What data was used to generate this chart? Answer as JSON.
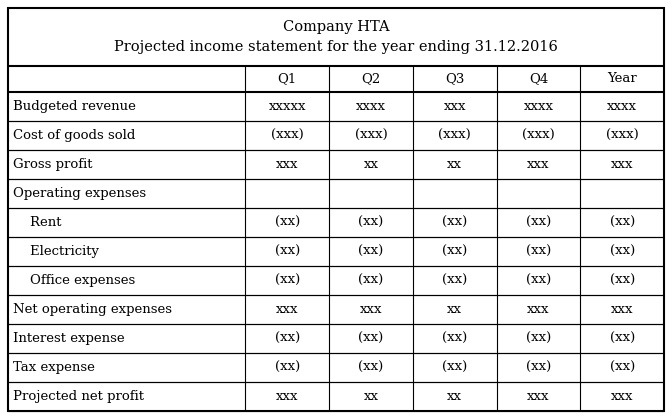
{
  "title_line1": "Company HTA",
  "title_line2": "Projected income statement for the year ending 31.12.2016",
  "col_headers": [
    "",
    "Q1",
    "Q2",
    "Q3",
    "Q4",
    "Year"
  ],
  "rows": [
    {
      "label": "Budgeted revenue",
      "indent": false,
      "values": [
        "xxxxx",
        "xxxx",
        "xxx",
        "xxxx",
        "xxxx"
      ]
    },
    {
      "label": "Cost of goods sold",
      "indent": false,
      "values": [
        "(xxx)",
        "(xxx)",
        "(xxx)",
        "(xxx)",
        "(xxx)"
      ]
    },
    {
      "label": "Gross profit",
      "indent": false,
      "values": [
        "xxx",
        "xx",
        "xx",
        "xxx",
        "xxx"
      ]
    },
    {
      "label": "Operating expenses",
      "indent": false,
      "values": [
        "",
        "",
        "",
        "",
        ""
      ]
    },
    {
      "label": "    Rent",
      "indent": false,
      "values": [
        "(xx)",
        "(xx)",
        "(xx)",
        "(xx)",
        "(xx)"
      ]
    },
    {
      "label": "    Electricity",
      "indent": false,
      "values": [
        "(xx)",
        "(xx)",
        "(xx)",
        "(xx)",
        "(xx)"
      ]
    },
    {
      "label": "    Office expenses",
      "indent": false,
      "values": [
        "(xx)",
        "(xx)",
        "(xx)",
        "(xx)",
        "(xx)"
      ]
    },
    {
      "label": "Net operating expenses",
      "indent": false,
      "values": [
        "xxx",
        "xxx",
        "xx",
        "xxx",
        "xxx"
      ]
    },
    {
      "label": "Interest expense",
      "indent": false,
      "values": [
        "(xx)",
        "(xx)",
        "(xx)",
        "(xx)",
        "(xx)"
      ]
    },
    {
      "label": "Tax expense",
      "indent": false,
      "values": [
        "(xx)",
        "(xx)",
        "(xx)",
        "(xx)",
        "(xx)"
      ]
    },
    {
      "label": "Projected net profit",
      "indent": false,
      "values": [
        "xxx",
        "xx",
        "xx",
        "xxx",
        "xxx"
      ]
    }
  ],
  "bg_color": "#ffffff",
  "border_color": "#000000",
  "font_size": 9.5,
  "title_font_size": 10.5,
  "fig_width": 6.72,
  "fig_height": 4.19,
  "dpi": 100
}
